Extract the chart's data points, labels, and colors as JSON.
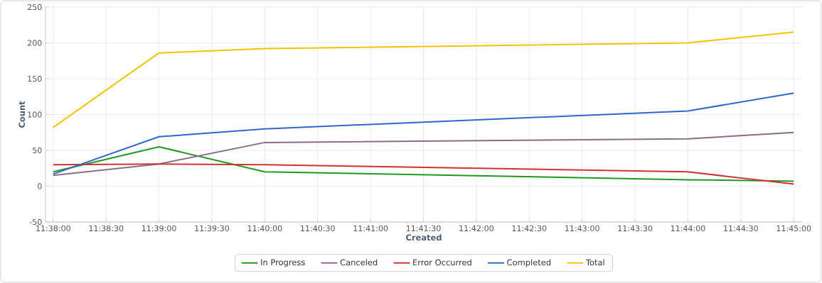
{
  "chart_data": {
    "type": "line",
    "xlabel": "Created",
    "ylabel": "Count",
    "x": [
      11.633333,
      11.65,
      11.666667,
      11.733333,
      11.75
    ],
    "series": [
      {
        "name": "In Progress",
        "color": "#1f9a1f",
        "values": [
          20,
          55,
          20,
          9,
          7
        ]
      },
      {
        "name": "Canceled",
        "color": "#8a6d8a",
        "values": [
          15,
          31,
          61,
          66,
          75
        ]
      },
      {
        "name": "Error Occurred",
        "color": "#d03333",
        "values": [
          30,
          31,
          30,
          20,
          3
        ]
      },
      {
        "name": "Completed",
        "color": "#3366cc",
        "values": [
          17,
          69,
          80,
          105,
          130
        ]
      },
      {
        "name": "Total",
        "color": "#f2c500",
        "values": [
          82,
          186,
          192,
          200,
          215
        ]
      }
    ],
    "xlim": [
      11.632123,
      11.751321
    ],
    "ylim": [
      -50,
      250
    ],
    "xticks": [
      {
        "value": 11.633333,
        "label": "11:38:00"
      },
      {
        "value": 11.641667,
        "label": "11:38:30"
      },
      {
        "value": 11.65,
        "label": "11:39:00"
      },
      {
        "value": 11.658333,
        "label": "11:39:30"
      },
      {
        "value": 11.666667,
        "label": "11:40:00"
      },
      {
        "value": 11.675,
        "label": "11:40:30"
      },
      {
        "value": 11.683333,
        "label": "11:41:00"
      },
      {
        "value": 11.691667,
        "label": "11:41:30"
      },
      {
        "value": 11.7,
        "label": "11:42:00"
      },
      {
        "value": 11.708333,
        "label": "11:42:30"
      },
      {
        "value": 11.716667,
        "label": "11:43:00"
      },
      {
        "value": 11.725,
        "label": "11:43:30"
      },
      {
        "value": 11.733333,
        "label": "11:44:00"
      },
      {
        "value": 11.741667,
        "label": "11:44:30"
      },
      {
        "value": 11.75,
        "label": "11:45:00"
      }
    ],
    "yticks": [
      -50,
      0,
      50,
      100,
      150,
      200,
      250
    ],
    "grid": true,
    "legend": "bottom",
    "marker": "none",
    "line_style": "solid"
  }
}
